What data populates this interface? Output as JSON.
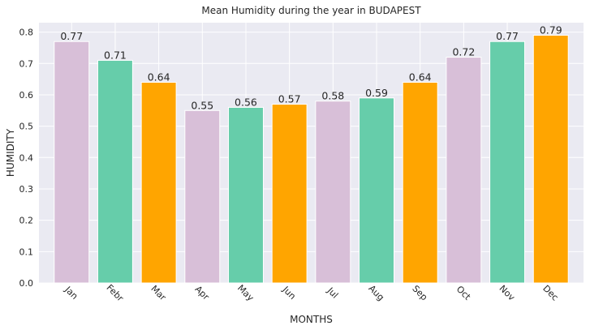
{
  "chart_data": {
    "type": "bar",
    "title": "Mean Humidity during the year in BUDAPEST",
    "xlabel": "MONTHS",
    "ylabel": "HUMIDITY",
    "categories": [
      "Jan",
      "Febr",
      "Mar",
      "Apr",
      "May",
      "Jun",
      "Jul",
      "Aug",
      "Sep",
      "Oct",
      "Nov",
      "Dec"
    ],
    "values": [
      0.77,
      0.71,
      0.64,
      0.55,
      0.56,
      0.57,
      0.58,
      0.59,
      0.64,
      0.72,
      0.77,
      0.79
    ],
    "value_labels": [
      "0.77",
      "0.71",
      "0.64",
      "0.55",
      "0.56",
      "0.57",
      "0.58",
      "0.59",
      "0.64",
      "0.72",
      "0.77",
      "0.79"
    ],
    "bar_colors": [
      "#d8bfd8",
      "#66cdaa",
      "#ffa500",
      "#d8bfd8",
      "#66cdaa",
      "#ffa500",
      "#d8bfd8",
      "#66cdaa",
      "#ffa500",
      "#d8bfd8",
      "#66cdaa",
      "#ffa500"
    ],
    "yticks": [
      0.0,
      0.1,
      0.2,
      0.3,
      0.4,
      0.5,
      0.6,
      0.7,
      0.8
    ],
    "ytick_labels": [
      "0.0",
      "0.1",
      "0.2",
      "0.3",
      "0.4",
      "0.5",
      "0.6",
      "0.7",
      "0.8"
    ],
    "ylim": [
      0,
      0.83
    ],
    "grid": true,
    "legend": "none",
    "colors": {
      "plot_background": "#eaeaf2",
      "grid": "#ffffff",
      "text": "#262626"
    }
  }
}
